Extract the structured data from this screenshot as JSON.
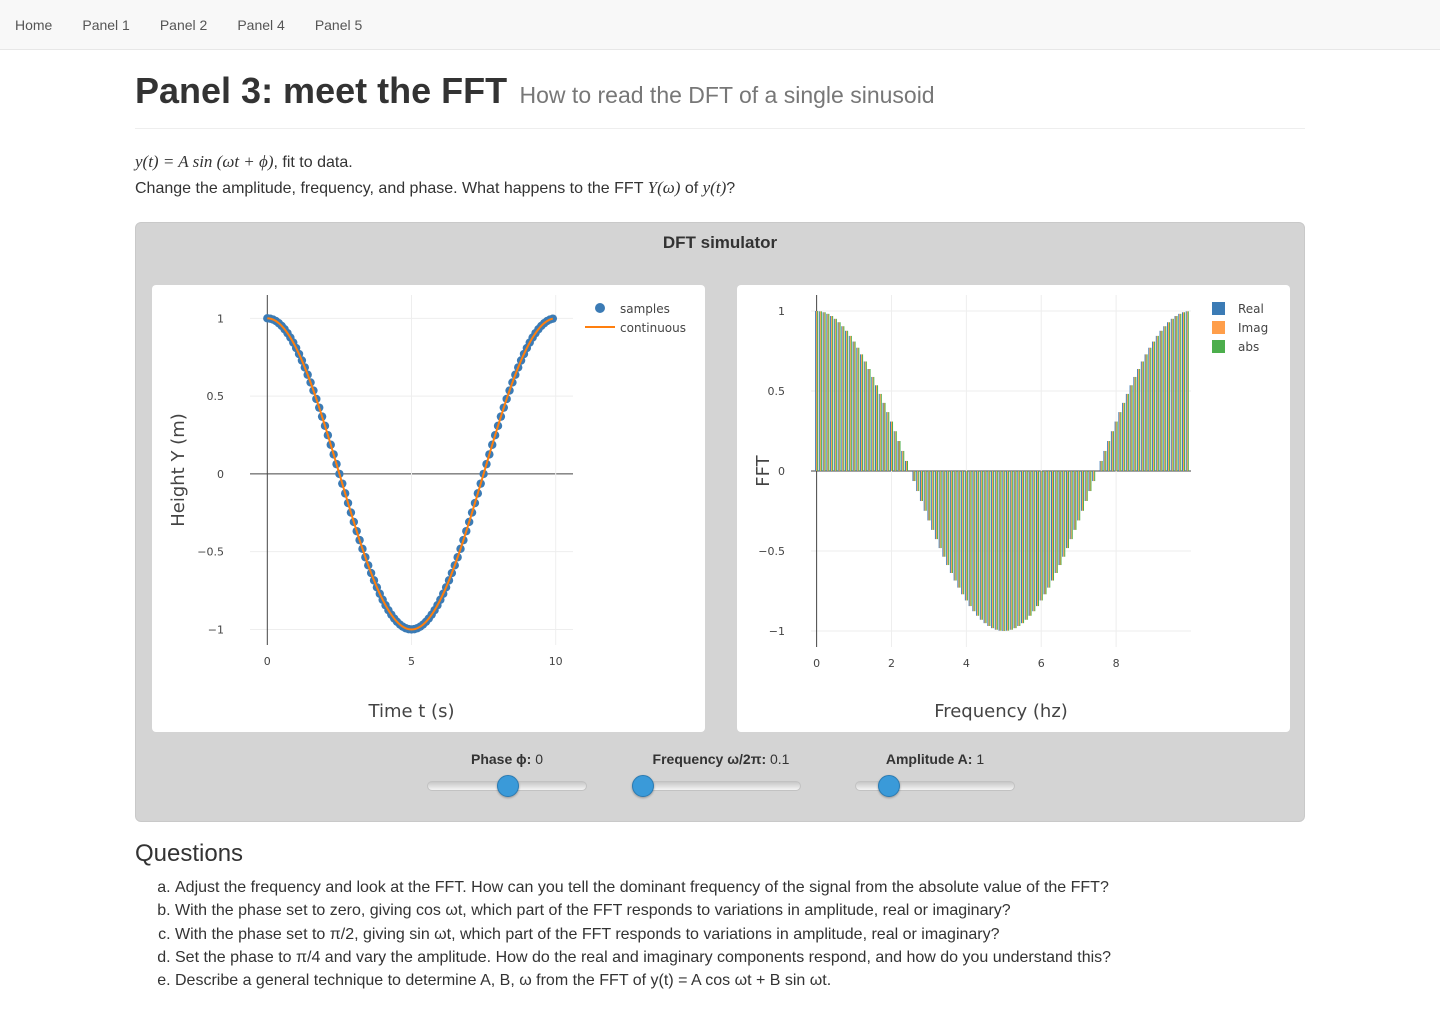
{
  "nav": {
    "items": [
      "Home",
      "Panel 1",
      "Panel 2",
      "Panel 4",
      "Panel 5"
    ]
  },
  "header": {
    "title": "Panel 3: meet the FFT",
    "subtitle": "How to read the DFT of a single sinusoid"
  },
  "intro": {
    "line1_math": "y(t) = A sin (ωt + ϕ)",
    "line1_text": ", fit to data.",
    "line2_text": "Change the amplitude, frequency, and phase. What happens to the FFT ",
    "line2_math1": "Y(ω)",
    "line2_mid": " of ",
    "line2_math2": "y(t)",
    "line2_end": "?"
  },
  "simulator": {
    "title": "DFT simulator",
    "sliders": [
      {
        "label": "Phase ϕ:",
        "value": "0",
        "position": 0.5
      },
      {
        "label": "Frequency ω/2π:",
        "value": "0.1",
        "position": 0.0
      },
      {
        "label": "Amplitude A:",
        "value": "1",
        "position": 0.2
      }
    ]
  },
  "chart_data": [
    {
      "type": "line",
      "title": "",
      "xlabel": "Time t (s)",
      "ylabel": "Height Y (m)",
      "xlim": [
        -0.6,
        10.6
      ],
      "ylim": [
        -1.1,
        1.15
      ],
      "xticks": [
        "0",
        "5",
        "10"
      ],
      "xtick_values": [
        0,
        5,
        10
      ],
      "yticks": [
        "1",
        "0.5",
        "0",
        "−0.5",
        "−1"
      ],
      "ytick_values": [
        1,
        0.5,
        0,
        -0.5,
        -1
      ],
      "legend": "top-right",
      "series": [
        {
          "name": "samples",
          "kind": "markers",
          "color": "#3b7bb5",
          "function": "A*cos(2*pi*f*t+phase)",
          "A": 1,
          "f": 0.1,
          "phase": 0,
          "t_start": 0,
          "t_step": 0.1,
          "count": 100
        },
        {
          "name": "continuous",
          "kind": "line",
          "color": "#ff7f0e",
          "function": "A*cos(2*pi*f*t+phase)",
          "A": 1,
          "f": 0.1,
          "phase": 0,
          "t_start": 0,
          "t_end": 9.9
        }
      ]
    },
    {
      "type": "bar",
      "title": "",
      "xlabel": "Frequency (hz)",
      "ylabel": "FFT",
      "xlim": [
        -0.15,
        10.0
      ],
      "ylim": [
        -1.1,
        1.1
      ],
      "xticks": [
        "0",
        "2",
        "4",
        "6",
        "8"
      ],
      "xtick_values": [
        0,
        2,
        4,
        6,
        8
      ],
      "yticks": [
        "1",
        "0.5",
        "0",
        "−0.5",
        "−1"
      ],
      "ytick_values": [
        1,
        0.5,
        0,
        -0.5,
        -1
      ],
      "legend": "top-right",
      "bins": {
        "start": 0,
        "step": 0.1,
        "count": 100,
        "values": "cos(2*pi*0.1*f)"
      },
      "series": [
        {
          "name": "Real",
          "color": "#3b7bb5"
        },
        {
          "name": "Imag",
          "color": "#ff9e4a"
        },
        {
          "name": "abs",
          "color": "#4cae4c"
        }
      ]
    }
  ],
  "questions": {
    "heading": "Questions",
    "items": [
      "Adjust the frequency and look at the FFT. How can you tell the dominant frequency of the signal from the absolute value of the FFT?",
      "With the phase set to zero, giving cos ωt, which part of the FFT responds to variations in amplitude, real or imaginary?",
      "With the phase set to π/2, giving sin ωt, which part of the FFT responds to variations in amplitude, real or imaginary?",
      "Set the phase to π/4 and vary the amplitude. How do the real and imaginary components respond, and how do you understand this?",
      "Describe a general technique to determine A, B, ω from the FFT of y(t) = A cos ωt + B sin ωt."
    ]
  }
}
